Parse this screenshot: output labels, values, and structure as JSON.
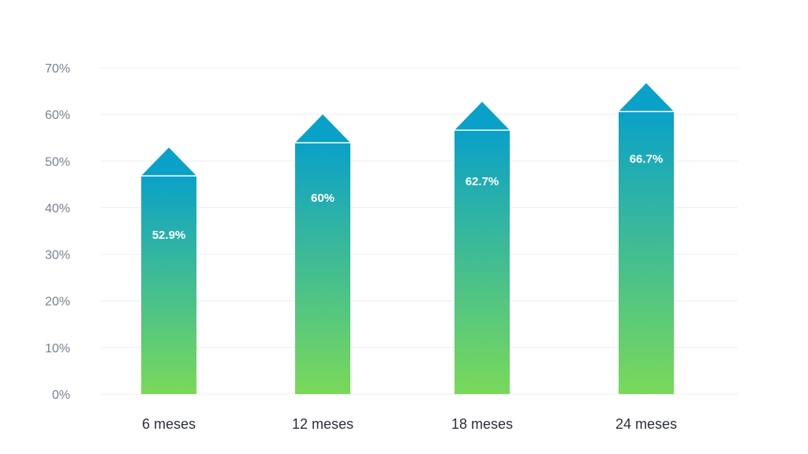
{
  "chart_data": {
    "type": "bar",
    "categories": [
      "6 meses",
      "12 meses",
      "18 meses",
      "24 meses"
    ],
    "values": [
      52.9,
      60,
      62.7,
      66.7
    ],
    "value_labels": [
      "52.9%",
      "60%",
      "62.7%",
      "66.7%"
    ],
    "y_ticks": [
      "0%",
      "10%",
      "20%",
      "30%",
      "40%",
      "50%",
      "60%",
      "70%"
    ],
    "ylim": [
      0,
      70
    ],
    "grid": true,
    "legend": "none",
    "title": "",
    "xlabel": "",
    "ylabel": "",
    "colors": {
      "bar_top": "#0aa1c9",
      "bar_bottom": "#7ad95a",
      "arrow": "#0aa1c9",
      "grid": "#eceef2",
      "tick_text": "#7a8194",
      "category_text": "#2b2f3a",
      "value_text": "#ffffff"
    }
  }
}
